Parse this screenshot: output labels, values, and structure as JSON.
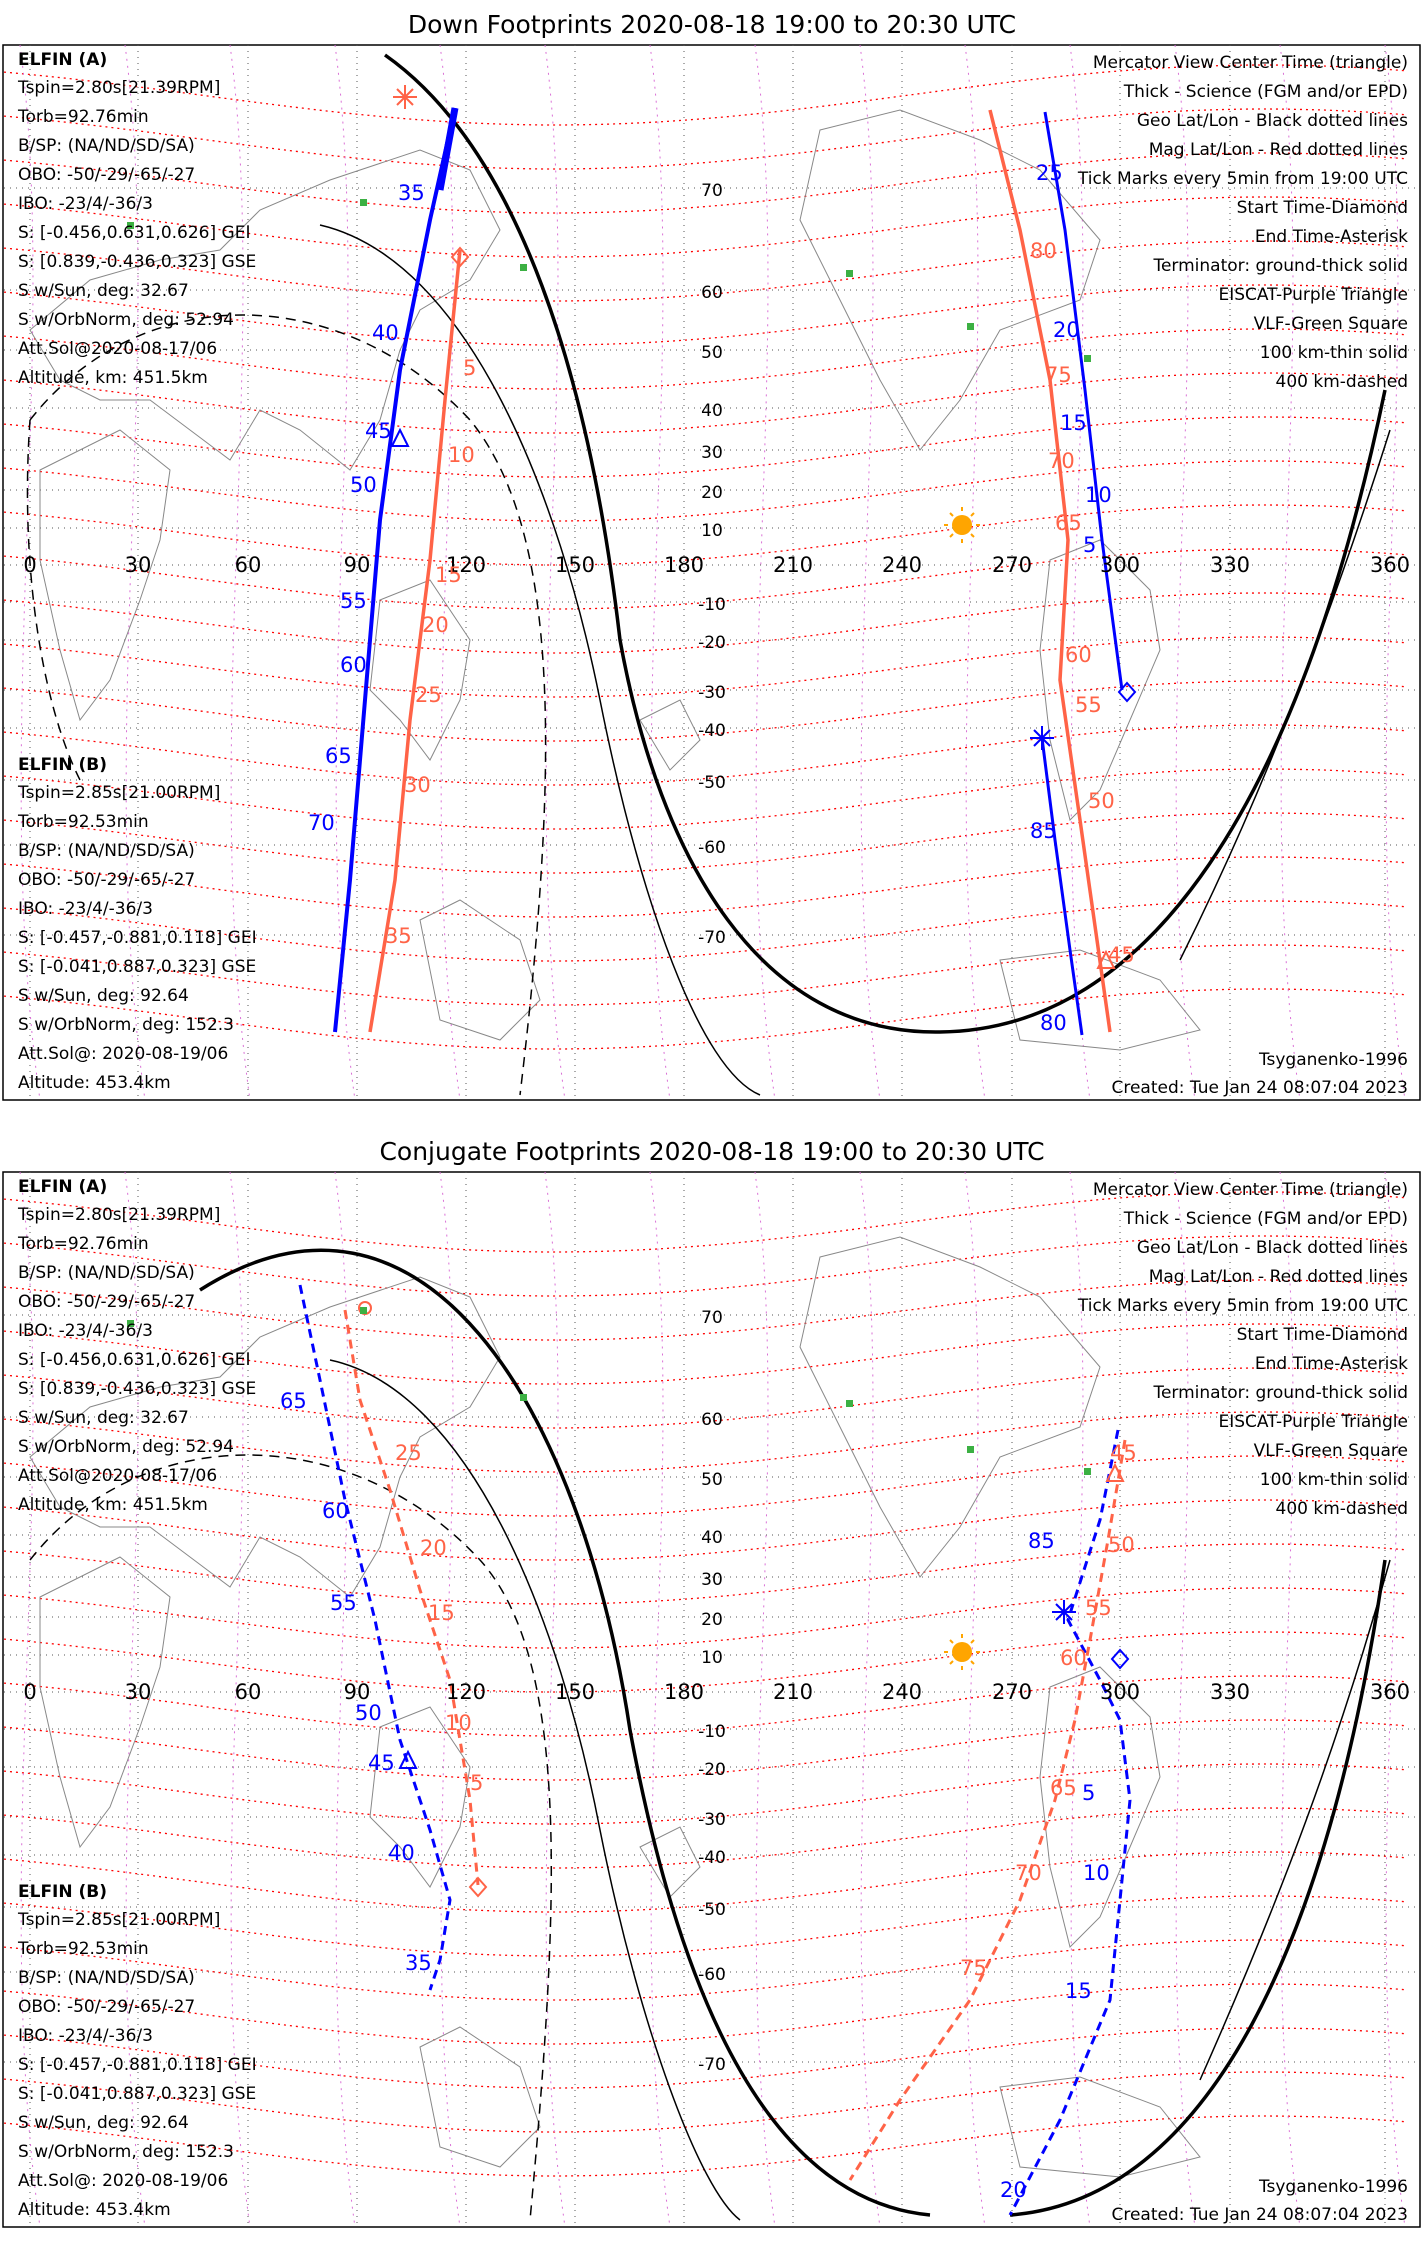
{
  "colors": {
    "probe_a": "#0000ff",
    "probe_b": "#ff6347",
    "mag_grid": "#ff0000",
    "geo_grid": "#000000",
    "eiscat": "#ee82ee",
    "vlf": "#3cb043",
    "sun": "#ffa500"
  },
  "legend_right": [
    {
      "text": "Mercator View Center Time (triangle)",
      "color": "#000000"
    },
    {
      "text": "Thick - Science (FGM and/or EPD)",
      "color": "#000000"
    },
    {
      "text": "Geo Lat/Lon - Black dotted lines",
      "color": "#000000"
    },
    {
      "text": "Mag Lat/Lon - Red dotted lines",
      "color": "#ff0000"
    },
    {
      "text": "Tick Marks every 5min from 19:00 UTC",
      "color": "#000000"
    },
    {
      "text": "Start Time-Diamond",
      "color": "#000000"
    },
    {
      "text": "End Time-Asterisk",
      "color": "#000000"
    },
    {
      "text": "Terminator: ground-thick solid",
      "color": "#000000"
    },
    {
      "text": "EISCAT-Purple Triangle",
      "color": "#ee82ee"
    },
    {
      "text": "VLF-Green Square",
      "color": "#3cb043"
    },
    {
      "text": "100 km-thin solid",
      "color": "#000000"
    },
    {
      "text": "400 km-dashed",
      "color": "#000000"
    }
  ],
  "probe_a_info": {
    "name": "ELFIN (A)",
    "lines": [
      "Tspin=2.80s[21.39RPM]",
      "Torb=92.76min",
      "B/SP: (NA/ND/SD/SA)",
      "OBO: -50/-29/-65/-27",
      "IBO: -23/4/-36/3",
      "S: [-0.456,0.631,0.626] GEI",
      "S: [0.839,-0.436,0.323] GSE",
      "S w/Sun, deg: 32.67",
      "S w/OrbNorm, deg: 52.94",
      "Att.Sol@2020-08-17/06",
      "Altitude, km: 451.5km"
    ]
  },
  "probe_b_info": {
    "name": "ELFIN (B)",
    "lines": [
      "Tspin=2.85s[21.00RPM]",
      "Torb=92.53min",
      "B/SP: (NA/ND/SD/SA)",
      "OBO: -50/-29/-65/-27",
      "IBO: -23/4/-36/3",
      "S: [-0.457,-0.881,0.118] GEI",
      "S: [-0.041,0.887,0.323] GSE",
      "S w/Sun, deg: 92.64",
      "S w/OrbNorm, deg: 152.3",
      "Att.Sol@: 2020-08-19/06",
      "Altitude: 453.4km"
    ]
  },
  "footer": {
    "model": "Tsyganenko-1996",
    "created": "Created: Tue Jan 24 08:07:04 2023"
  },
  "axes": {
    "lon_ticks": [
      "0",
      "30",
      "60",
      "90",
      "120",
      "150",
      "180",
      "210",
      "240",
      "270",
      "300",
      "330",
      "360"
    ],
    "lat_ticks": [
      "70",
      "60",
      "50",
      "40",
      "30",
      "20",
      "10",
      "-10",
      "-20",
      "-30",
      "-40",
      "-50",
      "-60",
      "-70"
    ]
  },
  "panels": [
    {
      "title": "Down Footprints 2020-08-18 19:00 to 20:30 UTC",
      "a_labels": [
        "35",
        "40",
        "45",
        "50",
        "55",
        "60",
        "65",
        "70",
        "25",
        "20",
        "15",
        "10",
        "5",
        "85",
        "80"
      ],
      "b_labels": [
        "5",
        "10",
        "15",
        "20",
        "25",
        "30",
        "35",
        "80",
        "75",
        "70",
        "65",
        "60",
        "55",
        "50",
        "45"
      ]
    },
    {
      "title": "Conjugate Footprints 2020-08-18 19:00 to 20:30 UTC",
      "a_labels": [
        "65",
        "60",
        "55",
        "50",
        "45",
        "40",
        "35",
        "85",
        "5",
        "10",
        "15",
        "20"
      ],
      "b_labels": [
        "25",
        "20",
        "15",
        "10",
        "5",
        "45",
        "50",
        "55",
        "60",
        "65",
        "70",
        "75"
      ]
    }
  ]
}
